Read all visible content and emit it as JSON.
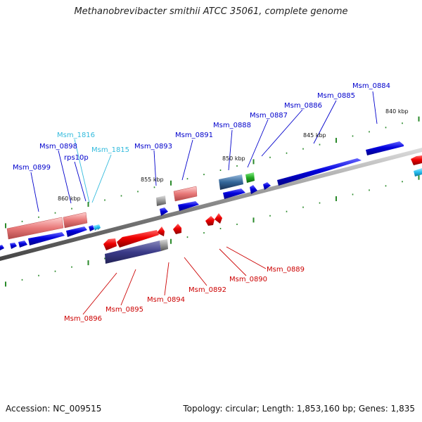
{
  "title": "Methanobrevibacter smithii ATCC 35061, complete genome",
  "footer": {
    "accession": "Accession: NC_009515",
    "topology": "Topology: circular; Length: 1,853,160 bp; Genes: 1,835"
  },
  "ticks": [
    "840 kbp",
    "845 kbp",
    "850 kbp",
    "855 kbp",
    "860 kbp"
  ],
  "labels_forward": [
    "Msm_0884",
    "Msm_0885",
    "Msm_0886",
    "Msm_0887",
    "Msm_0888",
    "Msm_0891",
    "Msm_0893",
    "Msm_0898",
    "Msm_0899",
    "rps10p"
  ],
  "labels_rna": [
    "Msm_1816",
    "Msm_1815"
  ],
  "labels_reverse": [
    "Msm_0889",
    "Msm_0890",
    "Msm_0892",
    "Msm_0894",
    "Msm_0895",
    "Msm_0896"
  ],
  "colors": {
    "forward": "#0000cc",
    "reverse": "#cc0000",
    "rna": "#33bbdd",
    "backbone": "#808080",
    "ticks": "#2a8a2a"
  }
}
